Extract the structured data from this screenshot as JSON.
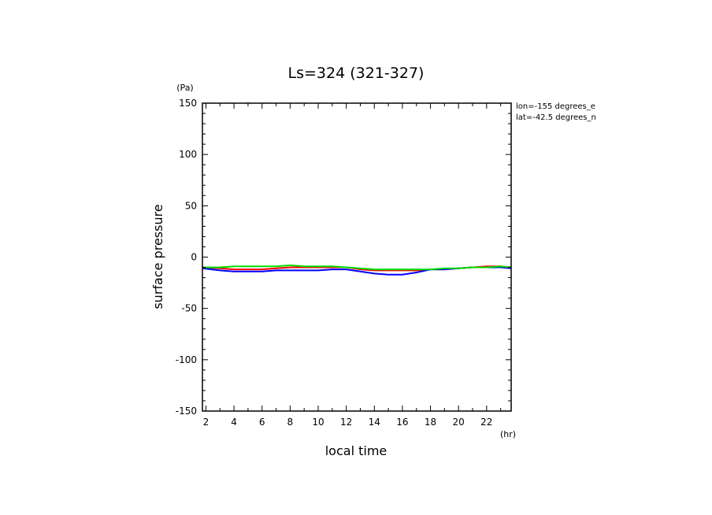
{
  "chart_data": {
    "type": "line",
    "title": "Ls=324 (321-327)",
    "xlabel": "local time",
    "ylabel": "surface pressure",
    "xunit": "(hr)",
    "yunit": "(Pa)",
    "xlim": [
      1.75,
      23.75
    ],
    "ylim": [
      -150,
      150
    ],
    "xticks": [
      2,
      4,
      6,
      8,
      10,
      12,
      14,
      16,
      18,
      20,
      22
    ],
    "yticks": [
      150,
      100,
      50,
      0,
      -50,
      -100,
      -150
    ],
    "grid": false,
    "legend": "none",
    "annotations": [
      "lon=-155 degrees_e",
      "lat=-42.5 degrees_n"
    ],
    "series": [
      {
        "color": "#ff0000",
        "x": [
          1.75,
          3,
          4,
          5,
          6,
          7,
          8,
          9,
          10,
          11,
          12,
          13,
          14,
          15,
          16,
          17,
          18,
          19,
          20,
          21,
          22,
          23,
          23.75
        ],
        "y": [
          -10,
          -11,
          -12,
          -12,
          -12,
          -11,
          -10,
          -10,
          -10,
          -10,
          -10,
          -12,
          -13,
          -13,
          -13,
          -13,
          -12,
          -12,
          -11,
          -10,
          -9,
          -9,
          -10
        ]
      },
      {
        "color": "#0000ff",
        "x": [
          1.75,
          3,
          4,
          5,
          6,
          7,
          8,
          9,
          10,
          11,
          12,
          13,
          14,
          15,
          16,
          17,
          18,
          19,
          20,
          21,
          22,
          23,
          23.75
        ],
        "y": [
          -11,
          -13,
          -14,
          -14,
          -14,
          -13,
          -13,
          -13,
          -13,
          -12,
          -12,
          -14,
          -16,
          -17,
          -17,
          -15,
          -12,
          -12,
          -11,
          -10,
          -10,
          -10,
          -11
        ]
      },
      {
        "color": "#00dd00",
        "x": [
          1.75,
          3,
          4,
          5,
          6,
          7,
          8,
          9,
          10,
          11,
          12,
          13,
          14,
          15,
          16,
          17,
          18,
          19,
          20,
          21,
          22,
          23,
          23.75
        ],
        "y": [
          -10,
          -10,
          -9,
          -9,
          -9,
          -9,
          -8,
          -9,
          -9,
          -9,
          -10,
          -11,
          -12,
          -12,
          -12,
          -12,
          -12,
          -11,
          -11,
          -10,
          -10,
          -9,
          -10
        ]
      }
    ]
  }
}
